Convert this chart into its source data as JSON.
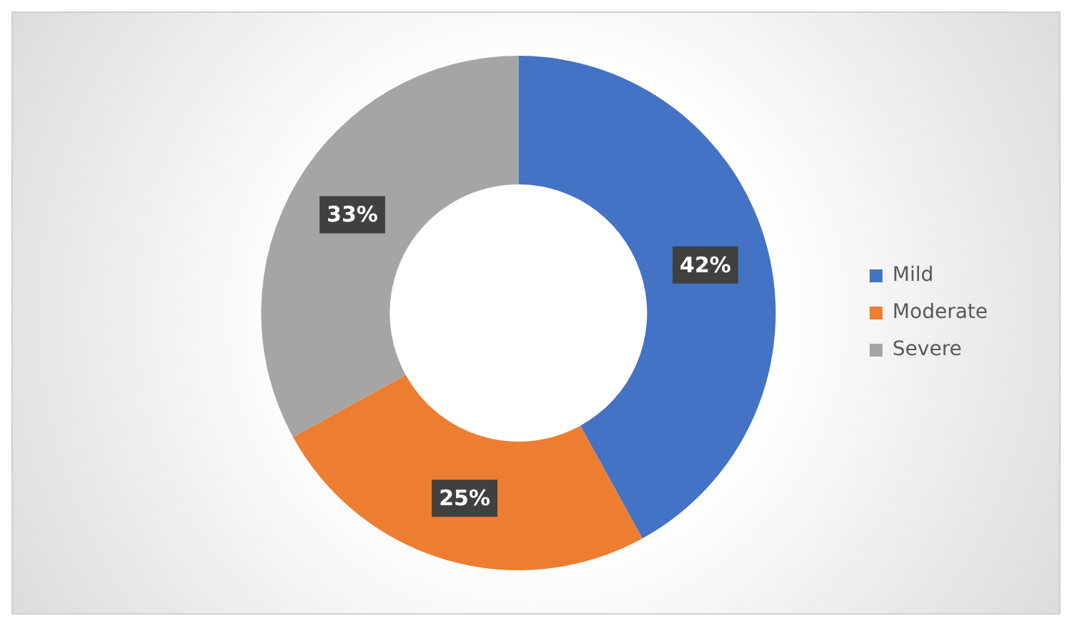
{
  "chart_data": {
    "type": "donut",
    "categories": [
      "Mild",
      "Moderate",
      "Severe"
    ],
    "values": [
      42,
      25,
      33
    ],
    "colors": [
      "#4472c4",
      "#ed7d31",
      "#a5a5a5"
    ],
    "value_labels": [
      "42%",
      "25%",
      "33%"
    ],
    "legend": "right"
  }
}
